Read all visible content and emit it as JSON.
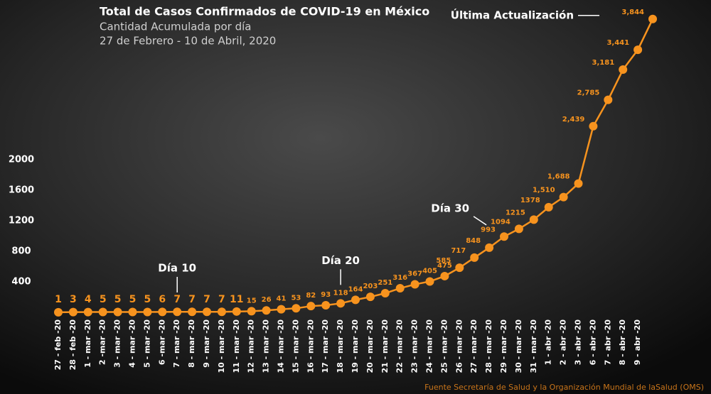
{
  "chart_data": {
    "type": "line",
    "title": "Total de Casos Confirmados de COVID-19 en México",
    "subtitle": [
      "Cantidad Acumulada por día",
      "27 de Febrero - 10 de Abril, 2020"
    ],
    "source": "Fuente Secretaría de Salud y la Organización Mundial de laSalud (OMS)",
    "color": "#f7931e",
    "categories": [
      "27 - feb -20",
      "28 - feb -20",
      "1 - mar -20",
      "2 -mar -20",
      "3 - mar -20",
      "4 - mar -20",
      "5 - mar -20",
      "6 -mar -20",
      "7 - mar -20",
      "8 - mar -20",
      "9 - mar -20",
      "10 - mar -20",
      "11 - mar -20",
      "12 - mar -20",
      "13 - mar -20",
      "14 - mar -20",
      "15 - mar -20",
      "16 - mar -20",
      "17 - mar -20",
      "18 - mar -20",
      "19 - mar -20",
      "20 - mar -20",
      "21 - mar -20",
      "22 - mar -20",
      "23 - mar -20",
      "24 - mar -20",
      "25 - mar -20",
      "26 - mar -20",
      "27 - mar -20",
      "28 - mar -20",
      "29 - mar -20",
      "30 - mar -20",
      "31 - mar -20",
      "1 - abr -20",
      "2 - abr -20",
      "3 - abr -20",
      "6 - abr -20",
      "7 - abr -20",
      "8 - abr -20",
      "9 - abr -20",
      null
    ],
    "values": [
      1,
      3,
      4,
      5,
      5,
      5,
      5,
      6,
      7,
      7,
      7,
      7,
      11,
      15,
      26,
      41,
      53,
      82,
      93,
      118,
      164,
      203,
      251,
      316,
      367,
      405,
      475,
      585,
      717,
      848,
      993,
      1094,
      1215,
      1378,
      1510,
      1688,
      2439,
      2785,
      3181,
      3441,
      3844
    ],
    "value_labels": [
      "1",
      "3",
      "4",
      "5",
      "5",
      "5",
      "5",
      "6",
      "7",
      "7",
      "7",
      "7",
      "11",
      "15",
      "26",
      "41",
      "53",
      "82",
      "93",
      "118",
      "164",
      "203",
      "251",
      "316",
      "367",
      "405",
      "475",
      "585",
      "717",
      "848",
      "993",
      "1094",
      "1215",
      "1378",
      "1,510",
      "1,688",
      "2,439",
      "2,785",
      "3,181",
      "3,441",
      "3,844"
    ],
    "ylim": [
      0,
      4000
    ],
    "yticks": [
      400,
      800,
      1200,
      1600,
      2000
    ],
    "annotations": [
      {
        "text": "Día 10",
        "category": "7 - mar -20"
      },
      {
        "text": "Día 20",
        "category": "18 - mar -20"
      },
      {
        "text": "Día 30",
        "category": "28 - mar -20"
      },
      {
        "text": "Última Actualización"
      }
    ]
  }
}
